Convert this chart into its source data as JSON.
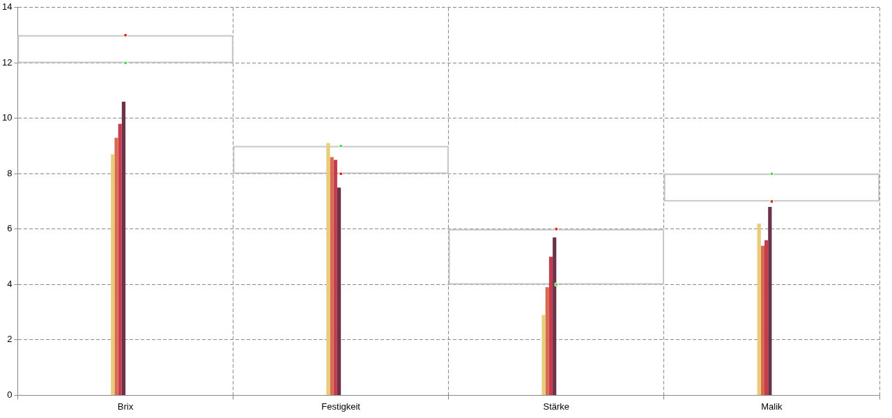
{
  "chart_data": {
    "type": "bar",
    "categories": [
      "Brix",
      "Festigkeit",
      "Stärke",
      "Malik"
    ],
    "series": [
      {
        "color": "#e8cc7a",
        "values": [
          8.7,
          9.1,
          2.9,
          6.2
        ]
      },
      {
        "color": "#d9694f",
        "values": [
          9.3,
          8.6,
          3.9,
          5.4
        ]
      },
      {
        "color": "#c43d4f",
        "values": [
          9.8,
          8.5,
          5.0,
          5.6
        ]
      },
      {
        "color": "#6b3349",
        "values": [
          10.6,
          7.5,
          5.7,
          6.8
        ]
      },
      {
        "type": "bar",
        "color": "#c8c8c8",
        "base": [
          12,
          8,
          4,
          7
        ],
        "values": [
          1,
          1,
          2,
          1
        ]
      },
      {
        "type": "scatter",
        "color": "#33dd33",
        "x": [
          "Brix",
          "Festigkeit",
          "Stärke",
          "Malik"
        ],
        "values": [
          12,
          9,
          4,
          8
        ]
      },
      {
        "type": "scatter",
        "color": "#ee0000",
        "x": [
          "Brix",
          "Festigkeit",
          "Stärke",
          "Malik"
        ],
        "values": [
          13,
          8,
          6,
          7
        ]
      }
    ],
    "ylim": [
      0,
      14
    ],
    "yticks": [
      0,
      2,
      4,
      6,
      8,
      10,
      12,
      14
    ],
    "grid": true,
    "legend": false,
    "marker": "square"
  }
}
